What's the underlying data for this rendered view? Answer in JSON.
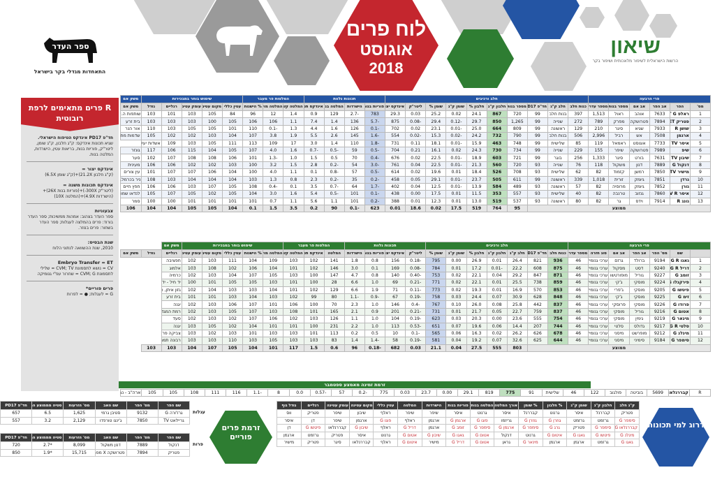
{
  "header": {
    "title_line1": "לוח פרים",
    "title_line2": "אוגוסט",
    "title_line3": "2018",
    "sion_name": "שיאון",
    "sion_sub": "הרשות הישראלית לשיפור מלאכותית ושיפור בקר",
    "herdbook_org": "התאחדות מגדלי בקר בישראל",
    "herdbook_logo": "ספר העדר"
  },
  "left_panel": {
    "banner": "R פרים מתאימים לרפת רובוטית",
    "pd_title": "חד\"פ PD17 אינדקס הטיפוח הישראלי.",
    "pd_text": "שגיא תכונות אינדקס: ק\"ג חלבון, ק\"ג שומן, ליטר\"ק, פוריות בנות, בריאות עטין, הישרדות, המלטה בנות.",
    "h1": "אינדקס יצור =",
    "t1": "(ק\"ג חלבון 21.2X)+(ק\"ג שומן 6.5X)",
    "h2": "אינדקס תכונות משנה =",
    "t2": "(ליטר\"ק 300X-)+(פוריות בנות 26X)+(הישרדות 4.9X)+(המלטה 10X)",
    "h3": "צבעוניות",
    "t3": "ספר העדר בצהוב: אמהות ממשיכות; ספר העדר בורוד: פרים בהמלצה לעגלות; ספר העדר בשחור: פרים בנוזר.",
    "h4": "שנת הבסיס:",
    "t4": "2010, שנת ההשוואה לנתוני הלוח",
    "h5": "Embryo Transfer = ET",
    "t5": "CV = נושא לתסמונת CVM; TV = שלילי לתסמונת CVM; G = שחרור עפ\"י גנומיקה",
    "h6": "פרים פוריים*",
    "t6": "G = לעגלות; ● = לפרות"
  },
  "blue_table": {
    "group_headers": [
      "פרי הרבעה",
      "חלב ורכיבים",
      "תכונות נלוות",
      "המלטות פר מעבר",
      "שימוש בוחר במבכירות",
      "משק אם"
    ],
    "col_headers": [
      "מס'",
      "הפר",
      "אב הפר",
      "אב אם",
      "מספר בנות",
      "מספר עדרים",
      "כנות חלב",
      "חלב ק\"ג",
      "חד\"פ PD17",
      "מספר בנות",
      "חלבון ק\"ג",
      "חלבון %",
      "שומן ק\"ג",
      "שומן %",
      "ליטר\"ק",
      "אינדקס יצור",
      "פוריות בנות",
      "הישרדות",
      "המלטה בנות",
      "אינדקס תכונות משנה",
      "המלטה קשה",
      "המלטה מוקדמת",
      "% הישנות",
      "עטין כללי",
      "מקום עטינה",
      "עומק עטינה",
      "רגליים",
      "גודל",
      "משק אם"
    ],
    "rows": [
      [
        "1",
        "ראלפ ET G",
        "7633",
        "אוהב",
        "ראול",
        "1,513",
        "397",
        "בנות חלב",
        "99",
        "720",
        "867",
        "24.1",
        "0.02",
        "25.2",
        "0.03",
        "29.3",
        "783",
        "-2.7",
        "129",
        "0.9",
        "1.4",
        "12",
        "96",
        "84",
        "105",
        "103",
        "101",
        "103",
        "שותפות ה.ק. רביבים"
      ],
      [
        "2",
        "פטריק ET",
        "7894",
        "פטרושקה",
        "מפרק",
        "789",
        "272",
        "שנייה",
        "99",
        "1,265",
        "850",
        "29.7",
        "-0.12",
        "29.4",
        "-0.08",
        "875",
        "-5.7",
        "136",
        "1.4",
        "7.4",
        "1.1",
        "106",
        "106",
        "105",
        "100",
        "103",
        "103",
        "103",
        "בית זרע"
      ],
      [
        "3",
        "שושן R",
        "7933",
        "שגיא",
        "סיגר",
        "210",
        "129",
        "ראשונה",
        "99",
        "809",
        "664",
        "25.0",
        "-0.01",
        "23.1",
        "0.02",
        "702",
        "-0.1",
        "126",
        "1.6",
        "4.4",
        "1.3",
        "-0.1",
        "110",
        "101",
        "105",
        "105",
        "103",
        "110",
        "אור הנר"
      ],
      [
        "4",
        "ארגמן",
        "7508",
        "אש",
        "רביל",
        "2,996",
        "506",
        "בנות חלב",
        "99",
        "790",
        "732",
        "24.2",
        "-0.02",
        "15.3",
        "-0.02",
        "554",
        "-1.6",
        "145",
        "2.6",
        "5.5",
        "1.9",
        "3.8",
        "107",
        "104",
        "103",
        "102",
        "102",
        "105",
        "שדמות מחולה"
      ],
      [
        "5",
        "איסר TV",
        "7733",
        "אוגוסט",
        "ראמאל",
        "119",
        "85",
        "שלישית",
        "99",
        "748",
        "463",
        "15.9",
        "-0.01",
        "18.1",
        "0.11",
        "731",
        "-1.8",
        "110",
        "1.4",
        "3.0",
        "17",
        "109",
        "113",
        "111",
        "105",
        "103",
        "109",
        "אשדות יעקב מאו."
      ],
      [
        "6",
        "שיפ",
        "7989",
        "פטרושקה",
        "שיפר",
        "155",
        "229",
        "שנייה",
        "99",
        "734",
        "730",
        "24.3",
        "0.02",
        "16.1",
        "0.21",
        "704",
        "-0.5",
        "59",
        "-0.5",
        "-0.7",
        "1.6",
        "4.0",
        "107",
        "105",
        "104",
        "115",
        "106",
        "117",
        "גונזר"
      ],
      [
        "7",
        "שיבון TV",
        "7631",
        "בורט",
        "סיגר",
        "1,333",
        "256",
        "בוגר",
        "99",
        "721",
        "603",
        "18.9",
        "-0.01",
        "22.5",
        "0.02",
        "676",
        "-0.4",
        "70",
        "0.5",
        "1.5",
        "1.0",
        "-1.3",
        "101",
        "106",
        "108",
        "108",
        "107",
        "102",
        "סער"
      ],
      [
        "8",
        "דנקול G",
        "7889",
        "דנון",
        "משקול",
        "118",
        "76",
        "שנייה",
        "93",
        "720",
        "560",
        "21.3",
        "-0.01",
        "22.5",
        "0.04",
        "761",
        "-3.0",
        "54",
        "-0.2",
        "2.8",
        "1.5",
        "3.2",
        "100",
        "103",
        "102",
        "102",
        "106",
        "106",
        "מעינית"
      ],
      [
        "9",
        "מישיר TV",
        "7850",
        "רמשן",
        "קזמוד",
        "82",
        "62",
        "שלישית",
        "93",
        "708",
        "526",
        "18.4",
        "0.01",
        "19.6",
        "0.02",
        "614",
        "-0.5",
        "57",
        "-0.8",
        "0.1",
        "1.1",
        "4.0",
        "100",
        "104",
        "106",
        "107",
        "107",
        "101",
        "עין צורים"
      ],
      [
        "10",
        "גרדן",
        "7851",
        "גיומק",
        "זורית",
        "1,018",
        "339",
        "ראשונה",
        "99",
        "611",
        "505",
        "23.7",
        "-0.01",
        "29.1",
        "0.05",
        "458",
        "-0.2",
        "35",
        "-0.2",
        "2.3",
        "0.8",
        "1.3",
        "103",
        "104",
        "104",
        "104",
        "103",
        "108",
        "ניר בכרמל, ניר עציון"
      ],
      [
        "11",
        "גורן",
        "7852",
        "גיומק",
        "מרוסיה",
        "82",
        "57",
        "ראשונה",
        "93",
        "489",
        "584",
        "13.9",
        "-0.01",
        "12.5",
        "0.04",
        "402",
        "-1.7",
        "64",
        "-0.7",
        "3.5",
        "0.1",
        "-0.4",
        "108",
        "105",
        "107",
        "103",
        "106",
        "106",
        "חפץ חיים"
      ],
      [
        "12",
        "איסר TV R",
        "7860",
        "גנזוב",
        "טרנבה",
        "82",
        "40",
        "שלישית",
        "93",
        "557",
        "353",
        "11.5",
        "0.01",
        "17.5",
        "0.00",
        "438",
        "-0.1",
        "101",
        "-0.5",
        "5.4",
        "1.6",
        "3.0",
        "104",
        "105",
        "102",
        "105",
        "107",
        "105",
        "לנדאו שמואל, רמת צבי"
      ],
      [
        "13",
        "גונג R",
        "7914",
        "וידס",
        "גר",
        "82",
        "80",
        "ראשונה",
        "93",
        "537",
        "519",
        "13.0",
        "0.01",
        "12.3",
        "0.01",
        "388",
        "-0.2",
        "101",
        "1.1",
        "5.6",
        "1.1",
        "0.7",
        "101",
        "101",
        "101",
        "101",
        "100",
        "100",
        "סמר"
      ]
    ],
    "avg_label": "ממוצע",
    "avg": [
      "95",
      "764",
      "519",
      "17.5",
      "0.02",
      "18.6",
      "0.01",
      "623",
      "-0.1",
      "90",
      "0.2",
      "3.5",
      "1.5",
      "0.1",
      "104",
      "105",
      "105",
      "104",
      "104",
      "106"
    ]
  },
  "green_table": {
    "col_headers": [
      "שם",
      "מס' הפר",
      "אב הפר",
      "אב אם",
      "סוג חזרה",
      "מספר עדרים",
      "כנות חלב",
      "חד\"פ PD17",
      "חלב ק\"ג",
      "חלבון ק\"ג",
      "חלבון %",
      "שומן ק\"ג",
      "שומן %",
      "ליטר\"ק",
      "אינדקס יצור",
      "פוריות בנות",
      "הישרדות",
      "המלטה",
      "אינדקס תכונות משנה",
      "המלטה קשה",
      "המלטה מוקדמת",
      "% הישנות",
      "עטין כללי",
      "מקום עטינה",
      "עומק עטינה",
      "רגליים",
      "גודל",
      "משק אם"
    ],
    "rows": [
      [
        "1",
        "גאגו G R",
        "9194",
        "ברולד",
        "גרזם",
        "ערכי גנומיקה (ללא בנות)",
        "46",
        "936",
        "821",
        "26.4",
        "0.01",
        "26.9",
        "0.00",
        "795",
        "-0.18",
        "156",
        "0.8",
        "1.8",
        "141",
        "102",
        "103",
        "109",
        "104",
        "111",
        "103",
        "102",
        "חפציבה"
      ],
      [
        "2",
        "דריל G R",
        "9240",
        "דסט",
        "מסקול",
        "ערכי גנומיקה (ללא בנות)",
        "46",
        "875",
        "608",
        "22.2",
        "-0.01",
        "17.2",
        "0.01",
        "784",
        "-0.08",
        "169",
        "0.1",
        "3.0",
        "146",
        "102",
        "101",
        "104",
        "106",
        "102",
        "108",
        "103",
        "אלמוג"
      ],
      [
        "3",
        "זומב G",
        "9227",
        "גוריל",
        "מופורטשו",
        "ערכי גנומיקה (ללא בנות)",
        "46",
        "871",
        "847",
        "29.2",
        "0.04",
        "22.1",
        "0.02",
        "753",
        "-0.40",
        "140",
        "0.8",
        "4.7",
        "147",
        "100",
        "103",
        "105",
        "107",
        "104",
        "103",
        "102",
        "כרמיה"
      ],
      [
        "4",
        "פירקנלו G",
        "9224",
        "מוסקי",
        "ג'קי",
        "ערכי גנומיקה (ללא בנות)",
        "46",
        "859",
        "738",
        "25.5",
        "0.01",
        "22.1",
        "0.02",
        "771",
        "-0.21",
        "69",
        "1.0",
        "6.6",
        "28",
        "100",
        "101",
        "103",
        "105",
        "105",
        "101",
        "100",
        "יד חיל - יד מרדכי"
      ],
      [
        "5",
        "פיטשו G",
        "9205",
        "מוסקי",
        "ג'פרי",
        "ערכי גנומיקה (ללא בנות)",
        "46",
        "853",
        "570",
        "16.9",
        "0.01",
        "19.3",
        "0.02",
        "773",
        "-0.11",
        "71",
        "1.9",
        "6.6",
        "129",
        "102",
        "101",
        "104",
        "103",
        "103",
        "104",
        "102",
        "גזון איתן, כפר וויתקין"
      ],
      [
        "6",
        "זימ G",
        "9225",
        "מוסקי",
        "ג'קי",
        "ערכי גנומיקה (ללא בנות)",
        "46",
        "848",
        "628",
        "30.9",
        "0.07",
        "24.4",
        "0.03",
        "758",
        "-0.19",
        "67",
        "-0.9",
        "-1.1",
        "80",
        "99",
        "102",
        "103",
        "104",
        "103",
        "101",
        "101",
        "בית זרע"
      ],
      [
        "7",
        "פרודו G",
        "9226",
        "מוסקי",
        "פרוסקי",
        "ערכי גנומיקה (ללא בנות)",
        "46",
        "837",
        "442",
        "25.8",
        "0.08",
        "26.0",
        "0.10",
        "767",
        "-0.4",
        "146",
        "1.0",
        "2.3",
        "70",
        "100",
        "106",
        "101",
        "107",
        "106",
        "103",
        "102",
        "יגנה"
      ],
      [
        "8",
        "אטום G",
        "9216",
        "גוריל",
        "מוסקי",
        "ערכי גנומיקה (ללא בנות)",
        "46",
        "837",
        "759",
        "22.7",
        "0.05",
        "21.7",
        "0.01",
        "731",
        "-0.21",
        "201",
        "0.9",
        "2.1",
        "165",
        "101",
        "108",
        "103",
        "107",
        "105",
        "103",
        "102",
        "רמת המגדלים, יונתן"
      ],
      [
        "9",
        "מינאר G",
        "9219",
        "גימין",
        "מוסקי",
        "ערכי גנומיקה (ללא בנות)",
        "46",
        "754",
        "555",
        "23.6",
        "0.00",
        "20.3",
        "0.03",
        "623",
        "-0.19",
        "104",
        "1.0",
        "1.1",
        "126",
        "103",
        "102",
        "106",
        "107",
        "102",
        "103",
        "102",
        "סעד"
      ],
      [
        "10",
        "סלטי G R",
        "9217",
        "גדולס",
        "סלטי",
        "ערכי גנומיקה (ללא בנות)",
        "46",
        "744",
        "207",
        "14.4",
        "0.06",
        "19.6",
        "0.07",
        "651",
        "-0.53",
        "113",
        "1.0",
        "2.2",
        "231",
        "100",
        "101",
        "101",
        "104",
        "102",
        "105",
        "103",
        "יגנה"
      ],
      [
        "11",
        "מיגלנ G",
        "9212",
        "מופרשט",
        "מיסני",
        "ערכי גנומיקה (ללא בנות)",
        "46",
        "678",
        "626",
        "26.2",
        "0.02",
        "16.3",
        "0.06",
        "565",
        "-0.1",
        "10",
        "0.5",
        "0.2",
        "113",
        "101",
        "103",
        "103",
        "101",
        "103",
        "102",
        "103",
        "צביקה פרקר, כפר וויתקין"
      ],
      [
        "12",
        "סימפר G",
        "9184",
        "סימיני",
        "מיסני",
        "ערכי גנומיקה (ללא בנות)",
        "46",
        "644",
        "625",
        "32.6",
        "0.07",
        "19.2",
        "0.04",
        "581",
        "-0.19",
        "58",
        "-1.4",
        "1.4",
        "83",
        "103",
        "103",
        "105",
        "103",
        "110",
        "103",
        "103",
        "רבונה תמרים"
      ]
    ],
    "avg_label": "ממוצע",
    "avg": [
      "803",
      "555",
      "27.5",
      "0.04",
      "21.1",
      "0.03",
      "682",
      "-0.18",
      "96",
      "0.6",
      "1.5",
      "117",
      "101",
      "104",
      "105",
      "107",
      "104",
      "103",
      "103"
    ],
    "divider": "זרמת זמינה מאמצע ספטמבר",
    "extra": [
      "R",
      "קבררנלאו",
      "5699",
      "בוביטה",
      "פולגוב",
      "122",
      "46",
      "שלישית",
      "91",
      "775",
      "819",
      "29.1",
      "0.00",
      "23.7",
      "0.03",
      "775",
      "-0.2",
      "57",
      "-0.57",
      "0.0",
      "8",
      "-1.1",
      "116",
      "111",
      "108",
      "105",
      "105",
      "ארה\"ב - נבחן בישראל"
    ]
  },
  "bottom": {
    "green_hex": "זרמת פרים פוריים",
    "blue_hex": "דרוג למי תכונות",
    "heifers_label": "עגלות",
    "cows_label": "פרות",
    "fertile_headers": [
      "שם הפר",
      "מס' הפר",
      "שם האב",
      "מס' הזרעות",
      "סטיה מממוצע הריונים",
      "חד\"פ PD17"
    ],
    "fertile_heifers": [
      [
        "גרז'ורה G",
        "9132",
        "סטיבן גרמי",
        "1,625",
        "6.5",
        "657"
      ],
      [
        "גריילאט TV",
        "7850",
        "ג'ינגו טורפדו",
        "2,129",
        "3.2",
        "557"
      ]
    ],
    "fertile_cows": [
      [
        "דנקול",
        "7889",
        "דנון משקול",
        "8,099",
        "*2.7",
        "720"
      ],
      [
        "פטריק",
        "7894",
        "פטרושקה X מפרק",
        "15,715",
        "*1.9",
        "850"
      ]
    ],
    "rank_headers": [
      "ק\"ג חלב",
      "חלבון ק\"ג",
      "שומן ק\"ג",
      "% חלבון",
      "% שומן",
      "אורך המלטה",
      "המלטה בנות קשה",
      "פוריות בנות",
      "הישרדות",
      "המלטה",
      "עטין כללי",
      "מקום עטינה",
      "עומק עטינה",
      "רגליים",
      "גודל גוף"
    ],
    "rank_rows": [
      [
        "פטריק",
        "קבררנל",
        "איסר",
        "גרנוט",
        "קבררנל",
        "איסר",
        "גרנוט",
        "איסר",
        "שיפר",
        "שיפר",
        "ראלף",
        "שיבון",
        "שיפר",
        "פטריק",
        "ווס"
      ],
      [
        "סימפר G",
        "גרזמט",
        "גרזמט",
        "גוזרן G",
        "גוזרן G",
        "גריזמו",
        "פוגו G",
        "ארגמן G",
        "ארגמן",
        "ראלף",
        "פוגו G",
        "ארגמן",
        "שיפר",
        "דן",
        "איסר"
      ],
      [
        "קבררנלאו G",
        "סימפר G",
        "פטריק",
        "גרג G",
        "סימפר G",
        "ארגמן G",
        "סימפר G",
        "זומב G",
        "ארגמן",
        "דריל G",
        "ראלף",
        "שיבון G",
        "קבררנלאו",
        "פיטשו G",
        "דן"
      ],
      [
        "מיגלנ G",
        "פיטשו G",
        "גאגו G",
        "איטום G",
        "גרנוט",
        "דנקול",
        "אטום G",
        "גאגו G",
        "שיבון G",
        "אטום G",
        "גרנוט",
        "איסר",
        "פטריק",
        "גרזמט",
        "ארגמן"
      ],
      [
        "גאגו G",
        "גרזמט",
        "ארגמן",
        "ארגמן",
        "מינאר G",
        "גראן",
        "אטום G",
        "דריל G",
        "מישיר",
        "איטום G",
        "ראלף",
        "קבררנלאו",
        "סיגר",
        "פטריק",
        "מישיר"
      ]
    ]
  }
}
